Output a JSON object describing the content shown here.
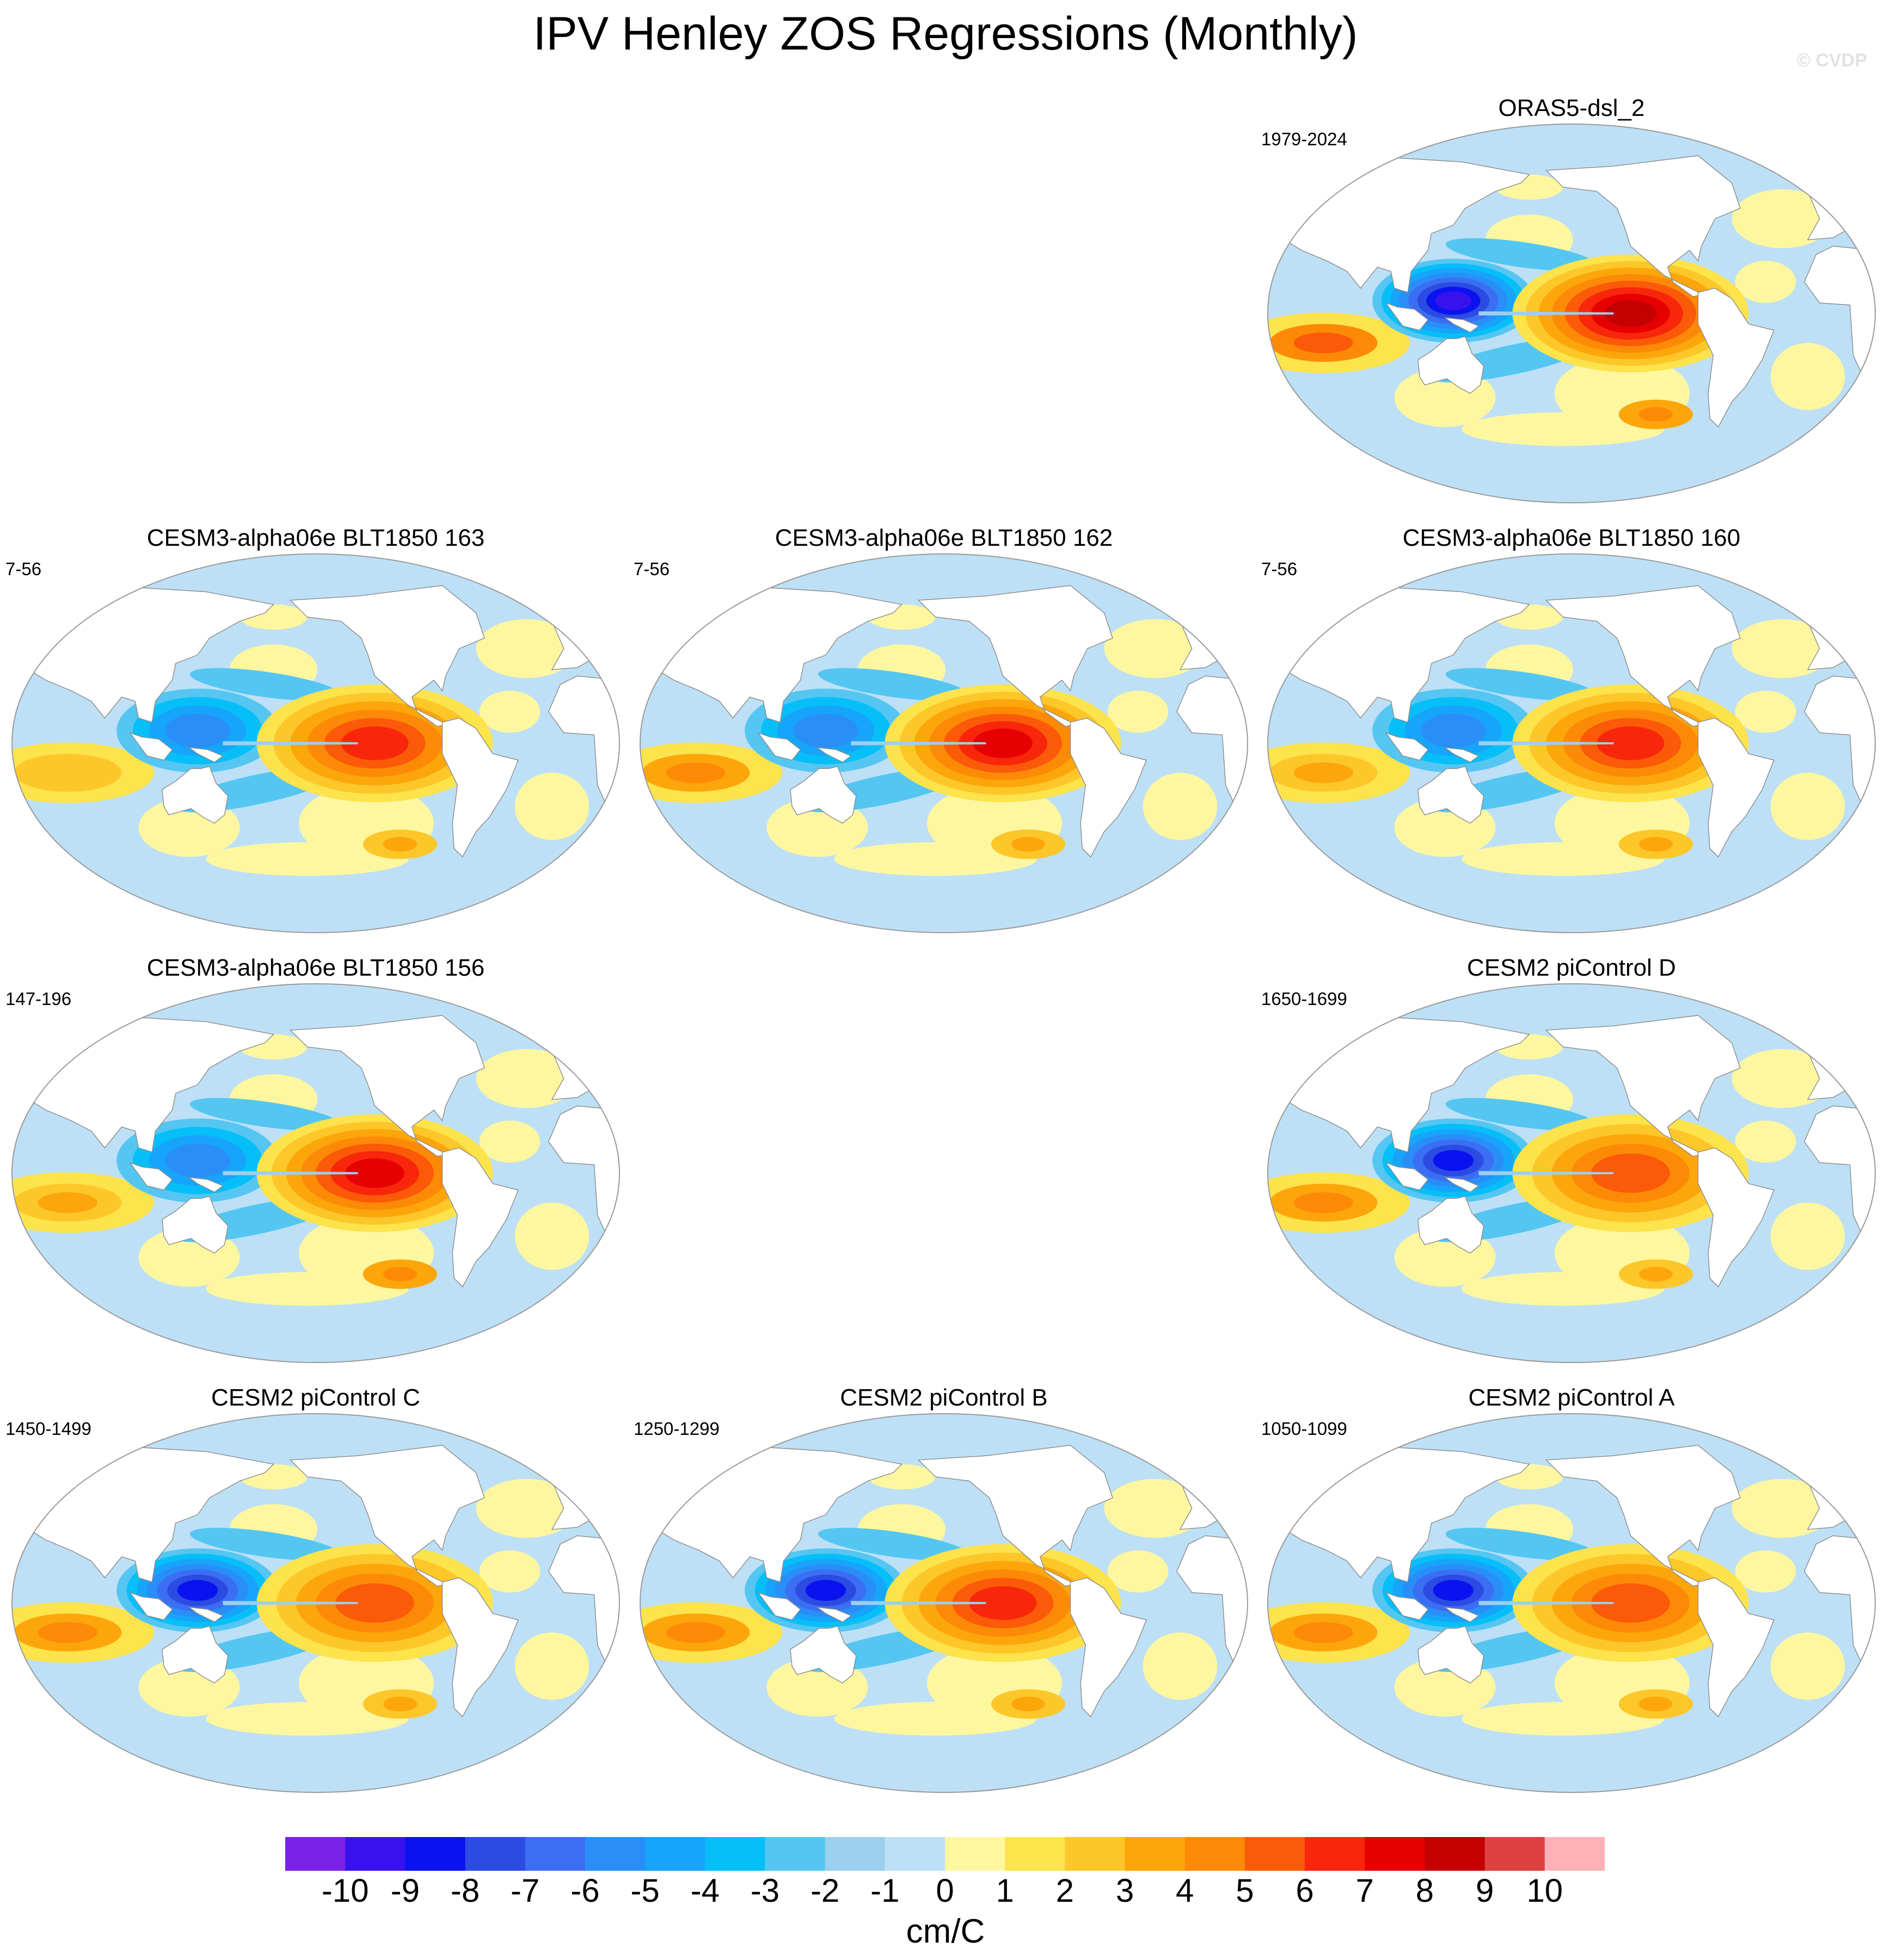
{
  "title": "IPV Henley ZOS Regressions (Monthly)",
  "watermark": "© CVDP",
  "chart_data": {
    "type": "contour_map_panels",
    "variable": "ZOS regression onto IPV Henley index",
    "projection": "Robinson (Pacific-centred)",
    "units": "cm/C",
    "colorbar": {
      "levels": [
        -10,
        -9,
        -8,
        -7,
        -6,
        -5,
        -4,
        -3,
        -2,
        -1,
        0,
        1,
        2,
        3,
        4,
        5,
        6,
        7,
        8,
        9,
        10
      ],
      "colors": [
        "#7b22e8",
        "#3812ec",
        "#0a12f0",
        "#2b4be2",
        "#3b6ef2",
        "#2a8ef8",
        "#17a4fb",
        "#06bff8",
        "#55c6f2",
        "#9bd0ee",
        "#bde0f6",
        "#fff7a0",
        "#fde34c",
        "#fdc72a",
        "#fda60c",
        "#fd8a06",
        "#fb5a08",
        "#f8260a",
        "#e60000",
        "#c40000",
        "#dc4040",
        "#ffb2b6"
      ]
    },
    "panels": [
      {
        "name": "ORAS5-dsl_2",
        "period": "1979-2024",
        "row": 0,
        "col": 2,
        "features": {
          "west_pacific_min": -9,
          "east_pacific_max": 8,
          "indian_ocean_max": 5,
          "southern_ocean_max": 4
        }
      },
      {
        "name": "CESM3-alpha06e BLT1850 163",
        "period": "7-56",
        "row": 1,
        "col": 0,
        "features": {
          "west_pacific_min": -5,
          "east_pacific_max": 6,
          "indian_ocean_max": 2,
          "southern_ocean_max": 3
        }
      },
      {
        "name": "CESM3-alpha06e BLT1850 162",
        "period": "7-56",
        "row": 1,
        "col": 1,
        "features": {
          "west_pacific_min": -5,
          "east_pacific_max": 7,
          "indian_ocean_max": 4,
          "southern_ocean_max": 3
        }
      },
      {
        "name": "CESM3-alpha06e BLT1850 160",
        "period": "7-56",
        "row": 1,
        "col": 2,
        "features": {
          "west_pacific_min": -5,
          "east_pacific_max": 6,
          "indian_ocean_max": 3,
          "southern_ocean_max": 3
        }
      },
      {
        "name": "CESM3-alpha06e BLT1850 156",
        "period": "147-196",
        "row": 2,
        "col": 0,
        "features": {
          "west_pacific_min": -5,
          "east_pacific_max": 7,
          "indian_ocean_max": 3,
          "southern_ocean_max": 4
        }
      },
      {
        "name": "CESM2 piControl D",
        "period": "1650-1699",
        "row": 2,
        "col": 2,
        "features": {
          "west_pacific_min": -8,
          "east_pacific_max": 5,
          "indian_ocean_max": 4,
          "southern_ocean_max": 3
        }
      },
      {
        "name": "CESM2 piControl C",
        "period": "1450-1499",
        "row": 3,
        "col": 0,
        "features": {
          "west_pacific_min": -8,
          "east_pacific_max": 5,
          "indian_ocean_max": 4,
          "southern_ocean_max": 3
        }
      },
      {
        "name": "CESM2 piControl B",
        "period": "1250-1299",
        "row": 3,
        "col": 1,
        "features": {
          "west_pacific_min": -8,
          "east_pacific_max": 6,
          "indian_ocean_max": 4,
          "southern_ocean_max": 3
        }
      },
      {
        "name": "CESM2 piControl A",
        "period": "1050-1099",
        "row": 3,
        "col": 2,
        "features": {
          "west_pacific_min": -8,
          "east_pacific_max": 5,
          "indian_ocean_max": 4,
          "southern_ocean_max": 3
        }
      }
    ]
  }
}
